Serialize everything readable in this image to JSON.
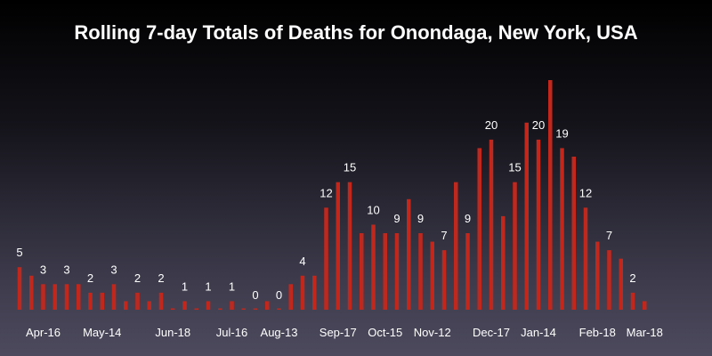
{
  "colors": {
    "bar": "#c0281e",
    "text": "#ffffff",
    "background_top": "#000000",
    "background_bottom": "#4d4a5e"
  },
  "chart_data": {
    "type": "bar",
    "title": "Rolling 7-day Totals of Deaths for Onondaga, New York, USA",
    "xlabel": "",
    "ylabel": "",
    "ylim": [
      0,
      27
    ],
    "grid": false,
    "legend": "none",
    "data_labels_every": 2,
    "values": [
      5,
      4,
      3,
      3,
      3,
      3,
      2,
      2,
      3,
      1,
      2,
      1,
      2,
      0,
      1,
      0,
      1,
      0,
      1,
      0,
      0,
      1,
      0,
      3,
      4,
      4,
      12,
      15,
      15,
      9,
      10,
      9,
      9,
      13,
      9,
      8,
      7,
      15,
      9,
      19,
      20,
      11,
      15,
      22,
      20,
      27,
      19,
      18,
      12,
      8,
      7,
      6,
      2,
      1
    ],
    "tick_labels": [
      {
        "index": 2,
        "label": "Apr-16"
      },
      {
        "index": 7,
        "label": "May-14"
      },
      {
        "index": 13,
        "label": "Jun-18"
      },
      {
        "index": 18,
        "label": "Jul-16"
      },
      {
        "index": 22,
        "label": "Aug-13"
      },
      {
        "index": 27,
        "label": "Sep-17"
      },
      {
        "index": 31,
        "label": "Oct-15"
      },
      {
        "index": 35,
        "label": "Nov-12"
      },
      {
        "index": 40,
        "label": "Dec-17"
      },
      {
        "index": 44,
        "label": "Jan-14"
      },
      {
        "index": 49,
        "label": "Feb-18"
      },
      {
        "index": 53,
        "label": "Mar-18"
      }
    ]
  }
}
